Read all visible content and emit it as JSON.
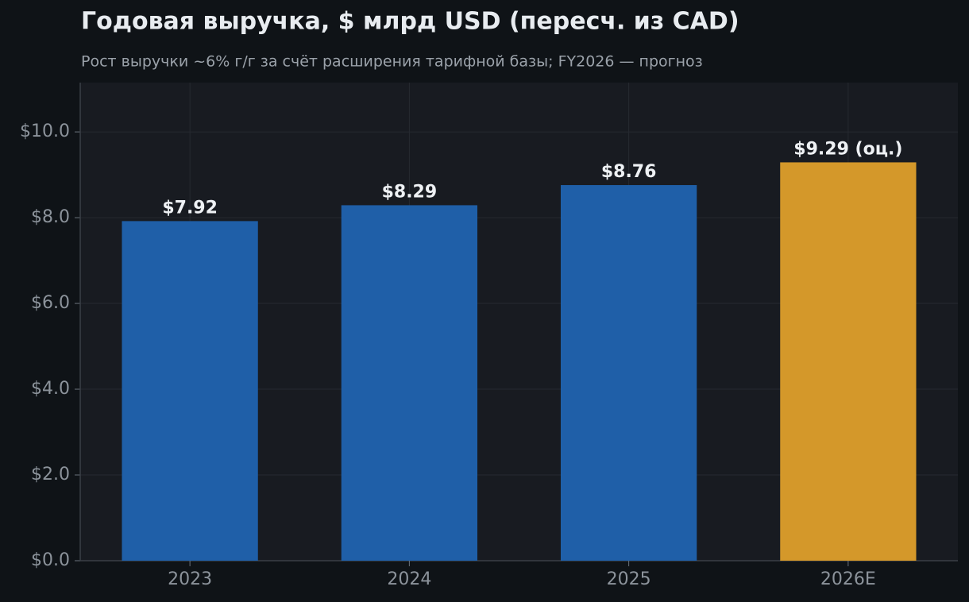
{
  "chart_data": {
    "type": "bar",
    "title": "Годовая выручка, $ млрд USD (пересч. из CAD)",
    "subtitle": "Рост выручки ~6% г/г за счёт расширения тарифной базы; FY2026 — прогноз",
    "categories": [
      "2023",
      "2024",
      "2025",
      "2026E"
    ],
    "values": [
      7.92,
      8.29,
      8.76,
      9.29
    ],
    "value_labels": [
      "$7.92",
      "$8.29",
      "$8.76",
      "$9.29 (оц.)"
    ],
    "colors": [
      "#1f5fa8",
      "#1f5fa8",
      "#1f5fa8",
      "#d4982a"
    ],
    "ylim": [
      0,
      11.15
    ],
    "yticks": [
      {
        "value": 0,
        "label": "$0.0"
      },
      {
        "value": 2,
        "label": "$2.0"
      },
      {
        "value": 4,
        "label": "$4.0"
      },
      {
        "value": 6,
        "label": "$6.0"
      },
      {
        "value": 8,
        "label": "$8.0"
      },
      {
        "value": 10,
        "label": "$10.0"
      }
    ],
    "grid": true
  }
}
